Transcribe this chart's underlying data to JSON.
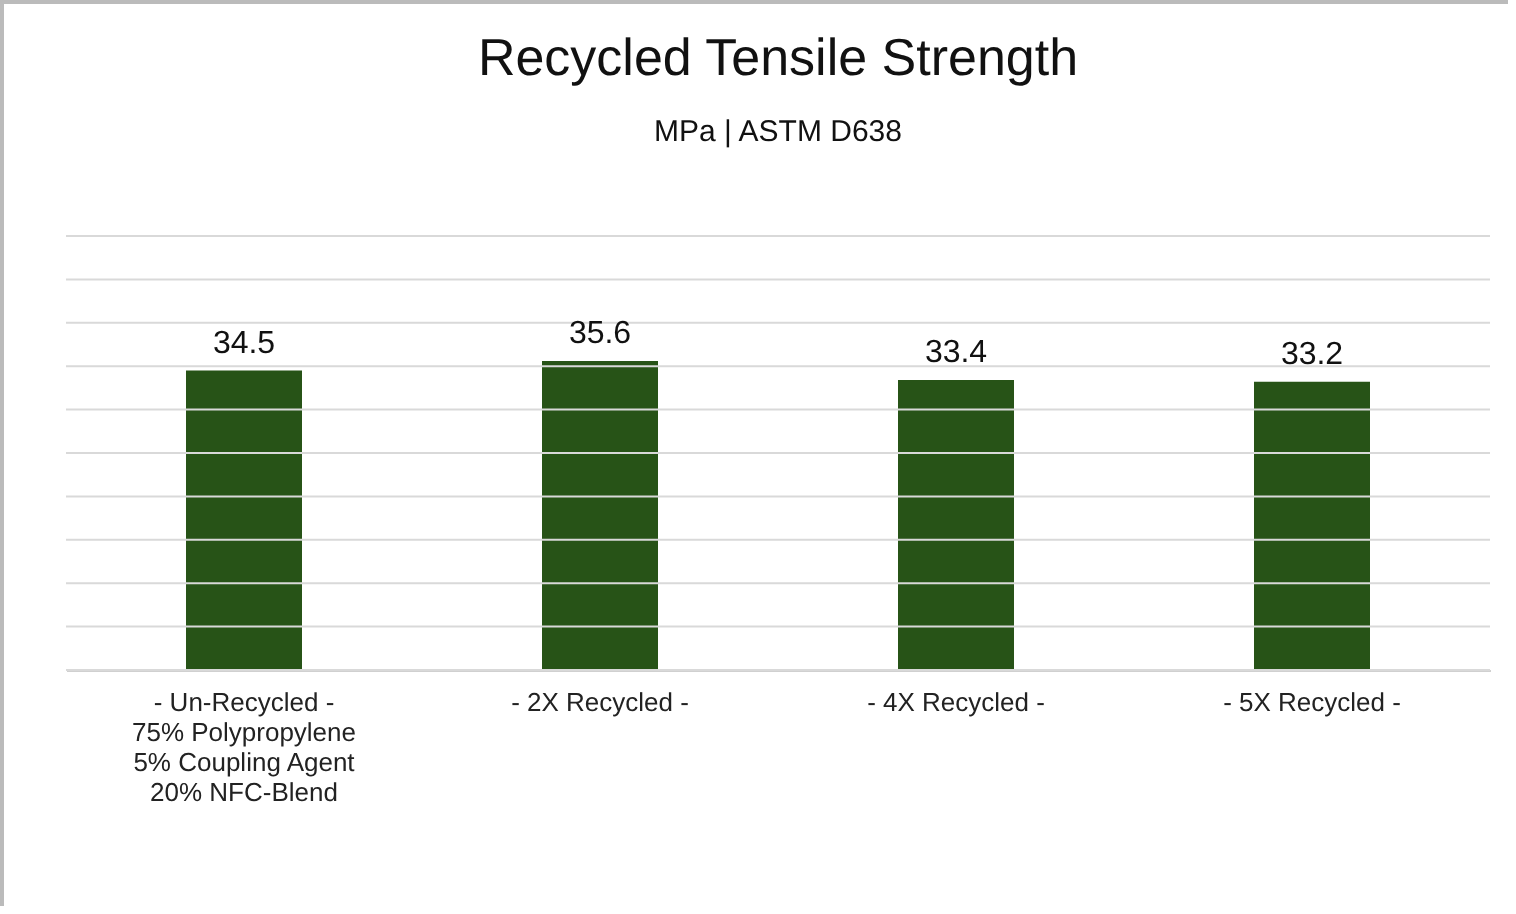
{
  "chart_data": {
    "type": "bar",
    "title": "Recycled Tensile Strength",
    "subtitle": "MPa | ASTM D638",
    "categories": [
      "- Un-Recycled -\n75% Polypropylene\n5% Coupling Agent\n20% NFC-Blend",
      "- 2X Recycled -",
      "- 4X Recycled -",
      "- 5X Recycled -"
    ],
    "values": [
      34.5,
      35.6,
      33.4,
      33.2
    ],
    "color": "#275317",
    "data_labels": true,
    "ylim": [
      0,
      50
    ],
    "yticks": [
      {
        "value": 0,
        "label": null
      },
      {
        "value": 5,
        "label": null
      },
      {
        "value": 10,
        "label": null
      },
      {
        "value": 15,
        "label": null
      },
      {
        "value": 20,
        "label": null
      },
      {
        "value": 25,
        "label": null
      },
      {
        "value": 30,
        "label": null
      },
      {
        "value": 35,
        "label": null
      },
      {
        "value": 40,
        "label": null
      },
      {
        "value": 45,
        "label": null
      },
      {
        "value": 50,
        "label": null
      }
    ],
    "grid": "y",
    "tick_labels": "x"
  }
}
